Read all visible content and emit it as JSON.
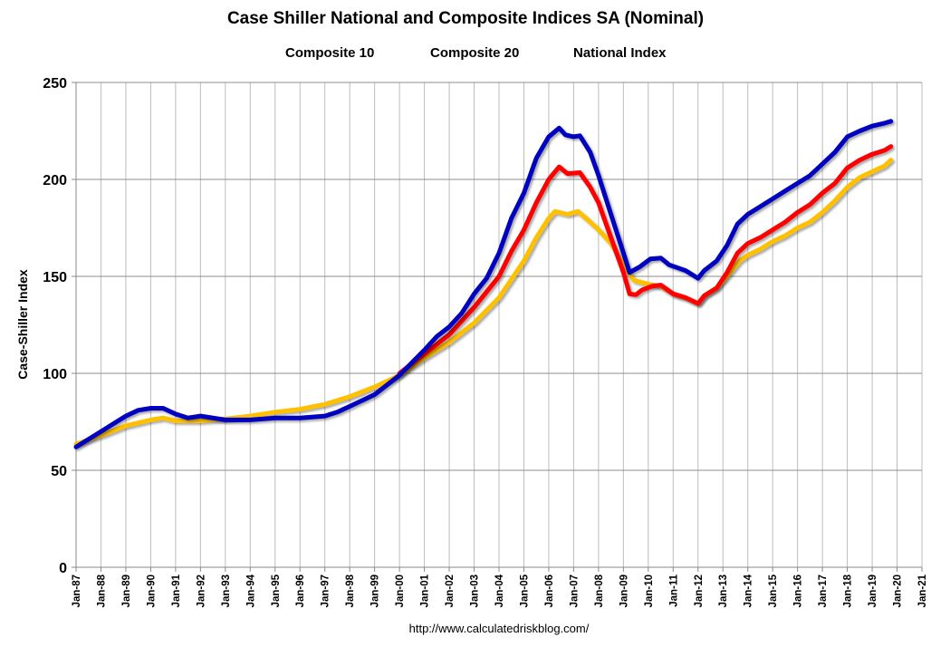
{
  "chart_data": {
    "type": "line",
    "title": "Case Shiller National and Composite Indices SA (Nominal)",
    "xlabel": "",
    "ylabel": "Case-Shiller Index",
    "source": "http://www.calculatedriskblog.com/",
    "ylim": [
      0,
      250
    ],
    "yticks": [
      0,
      50,
      100,
      150,
      200,
      250
    ],
    "xlim": [
      "1987-01",
      "2021-01"
    ],
    "xticks": [
      "Jan-87",
      "Jan-88",
      "Jan-89",
      "Jan-90",
      "Jan-91",
      "Jan-92",
      "Jan-93",
      "Jan-94",
      "Jan-95",
      "Jan-96",
      "Jan-97",
      "Jan-98",
      "Jan-99",
      "Jan-00",
      "Jan-01",
      "Jan-02",
      "Jan-03",
      "Jan-04",
      "Jan-05",
      "Jan-06",
      "Jan-07",
      "Jan-08",
      "Jan-09",
      "Jan-10",
      "Jan-11",
      "Jan-12",
      "Jan-13",
      "Jan-14",
      "Jan-15",
      "Jan-16",
      "Jan-17",
      "Jan-18",
      "Jan-19",
      "Jan-20",
      "Jan-21"
    ],
    "grid": true,
    "legend_position": "top",
    "series": [
      {
        "name": "Composite 10",
        "color": "#0000C0",
        "points": [
          [
            "1987-01",
            62
          ],
          [
            "1988-01",
            70
          ],
          [
            "1989-01",
            78
          ],
          [
            "1989-07",
            81
          ],
          [
            "1990-01",
            82
          ],
          [
            "1990-07",
            82
          ],
          [
            "1991-01",
            79
          ],
          [
            "1991-07",
            77
          ],
          [
            "1992-01",
            78
          ],
          [
            "1993-01",
            76
          ],
          [
            "1994-01",
            76
          ],
          [
            "1995-01",
            77
          ],
          [
            "1996-01",
            77
          ],
          [
            "1997-01",
            78
          ],
          [
            "1997-07",
            80
          ],
          [
            "1998-01",
            83
          ],
          [
            "1999-01",
            89
          ],
          [
            "2000-01",
            99
          ],
          [
            "2001-01",
            112
          ],
          [
            "2001-07",
            119
          ],
          [
            "2002-01",
            124
          ],
          [
            "2002-07",
            131
          ],
          [
            "2003-01",
            141
          ],
          [
            "2003-07",
            149
          ],
          [
            "2004-01",
            162
          ],
          [
            "2004-07",
            180
          ],
          [
            "2005-01",
            193
          ],
          [
            "2005-07",
            211
          ],
          [
            "2006-01",
            222
          ],
          [
            "2006-06",
            226.5
          ],
          [
            "2006-09",
            223
          ],
          [
            "2007-01",
            222
          ],
          [
            "2007-04",
            222.5
          ],
          [
            "2007-09",
            214
          ],
          [
            "2008-01",
            202
          ],
          [
            "2008-07",
            182
          ],
          [
            "2009-01",
            162
          ],
          [
            "2009-04",
            152
          ],
          [
            "2009-09",
            155
          ],
          [
            "2010-02",
            159
          ],
          [
            "2010-07",
            159.5
          ],
          [
            "2010-11",
            156
          ],
          [
            "2011-07",
            153
          ],
          [
            "2012-01",
            149
          ],
          [
            "2012-04",
            153
          ],
          [
            "2012-10",
            158
          ],
          [
            "2013-03",
            166
          ],
          [
            "2013-08",
            177
          ],
          [
            "2014-01",
            182
          ],
          [
            "2014-07",
            186
          ],
          [
            "2015-01",
            190
          ],
          [
            "2015-07",
            194
          ],
          [
            "2016-01",
            198
          ],
          [
            "2016-07",
            202
          ],
          [
            "2017-01",
            208
          ],
          [
            "2017-07",
            214
          ],
          [
            "2018-01",
            222
          ],
          [
            "2018-07",
            225
          ],
          [
            "2019-01",
            227.5
          ],
          [
            "2019-07",
            229
          ],
          [
            "2019-10",
            230
          ]
        ]
      },
      {
        "name": "Composite 20",
        "color": "#FF0000",
        "points": [
          [
            "2000-01",
            100
          ],
          [
            "2001-01",
            110
          ],
          [
            "2002-01",
            120
          ],
          [
            "2003-01",
            134
          ],
          [
            "2004-01",
            150
          ],
          [
            "2004-07",
            163
          ],
          [
            "2005-01",
            174
          ],
          [
            "2005-07",
            188
          ],
          [
            "2006-01",
            200
          ],
          [
            "2006-06",
            206.5
          ],
          [
            "2006-10",
            203
          ],
          [
            "2007-04",
            203.5
          ],
          [
            "2007-09",
            196
          ],
          [
            "2008-01",
            188
          ],
          [
            "2008-07",
            170
          ],
          [
            "2009-01",
            152
          ],
          [
            "2009-04",
            141
          ],
          [
            "2009-07",
            140.5
          ],
          [
            "2009-10",
            143
          ],
          [
            "2010-03",
            145
          ],
          [
            "2010-07",
            145.5
          ],
          [
            "2011-01",
            141
          ],
          [
            "2011-07",
            139
          ],
          [
            "2012-01",
            136
          ],
          [
            "2012-04",
            140
          ],
          [
            "2012-10",
            144
          ],
          [
            "2013-03",
            152
          ],
          [
            "2013-08",
            162
          ],
          [
            "2014-01",
            167
          ],
          [
            "2014-07",
            170
          ],
          [
            "2015-01",
            174
          ],
          [
            "2015-07",
            178
          ],
          [
            "2016-01",
            183
          ],
          [
            "2016-07",
            187
          ],
          [
            "2017-01",
            193
          ],
          [
            "2017-07",
            198
          ],
          [
            "2018-01",
            206
          ],
          [
            "2018-07",
            210
          ],
          [
            "2019-01",
            213
          ],
          [
            "2019-07",
            215
          ],
          [
            "2019-10",
            217
          ]
        ]
      },
      {
        "name": "National Index",
        "color": "#FFC000",
        "points": [
          [
            "1987-01",
            63.5
          ],
          [
            "1988-01",
            68
          ],
          [
            "1989-01",
            73
          ],
          [
            "1990-01",
            76
          ],
          [
            "1990-07",
            77
          ],
          [
            "1991-01",
            75.5
          ],
          [
            "1992-01",
            75.5
          ],
          [
            "1993-01",
            76.5
          ],
          [
            "1994-01",
            78
          ],
          [
            "1995-01",
            80
          ],
          [
            "1996-01",
            81.5
          ],
          [
            "1997-01",
            84
          ],
          [
            "1998-01",
            88
          ],
          [
            "1999-01",
            93
          ],
          [
            "2000-01",
            99
          ],
          [
            "2001-01",
            108
          ],
          [
            "2002-01",
            116
          ],
          [
            "2003-01",
            126
          ],
          [
            "2004-01",
            139
          ],
          [
            "2005-01",
            158
          ],
          [
            "2005-07",
            170
          ],
          [
            "2006-01",
            180
          ],
          [
            "2006-04",
            183.5
          ],
          [
            "2006-10",
            182
          ],
          [
            "2007-03",
            183.5
          ],
          [
            "2007-08",
            179
          ],
          [
            "2008-01",
            174
          ],
          [
            "2008-07",
            167
          ],
          [
            "2009-01",
            156
          ],
          [
            "2009-06",
            148
          ],
          [
            "2010-01",
            146
          ],
          [
            "2010-07",
            145
          ],
          [
            "2011-01",
            141
          ],
          [
            "2011-07",
            139
          ],
          [
            "2012-01",
            136
          ],
          [
            "2012-04",
            140
          ],
          [
            "2012-10",
            144
          ],
          [
            "2013-03",
            150
          ],
          [
            "2013-09",
            158
          ],
          [
            "2014-01",
            161
          ],
          [
            "2014-07",
            164
          ],
          [
            "2015-01",
            168
          ],
          [
            "2015-07",
            171
          ],
          [
            "2016-01",
            175
          ],
          [
            "2016-07",
            178
          ],
          [
            "2017-01",
            183
          ],
          [
            "2017-07",
            189
          ],
          [
            "2018-01",
            196
          ],
          [
            "2018-07",
            201
          ],
          [
            "2019-01",
            204
          ],
          [
            "2019-07",
            207
          ],
          [
            "2019-10",
            210
          ]
        ]
      }
    ]
  }
}
